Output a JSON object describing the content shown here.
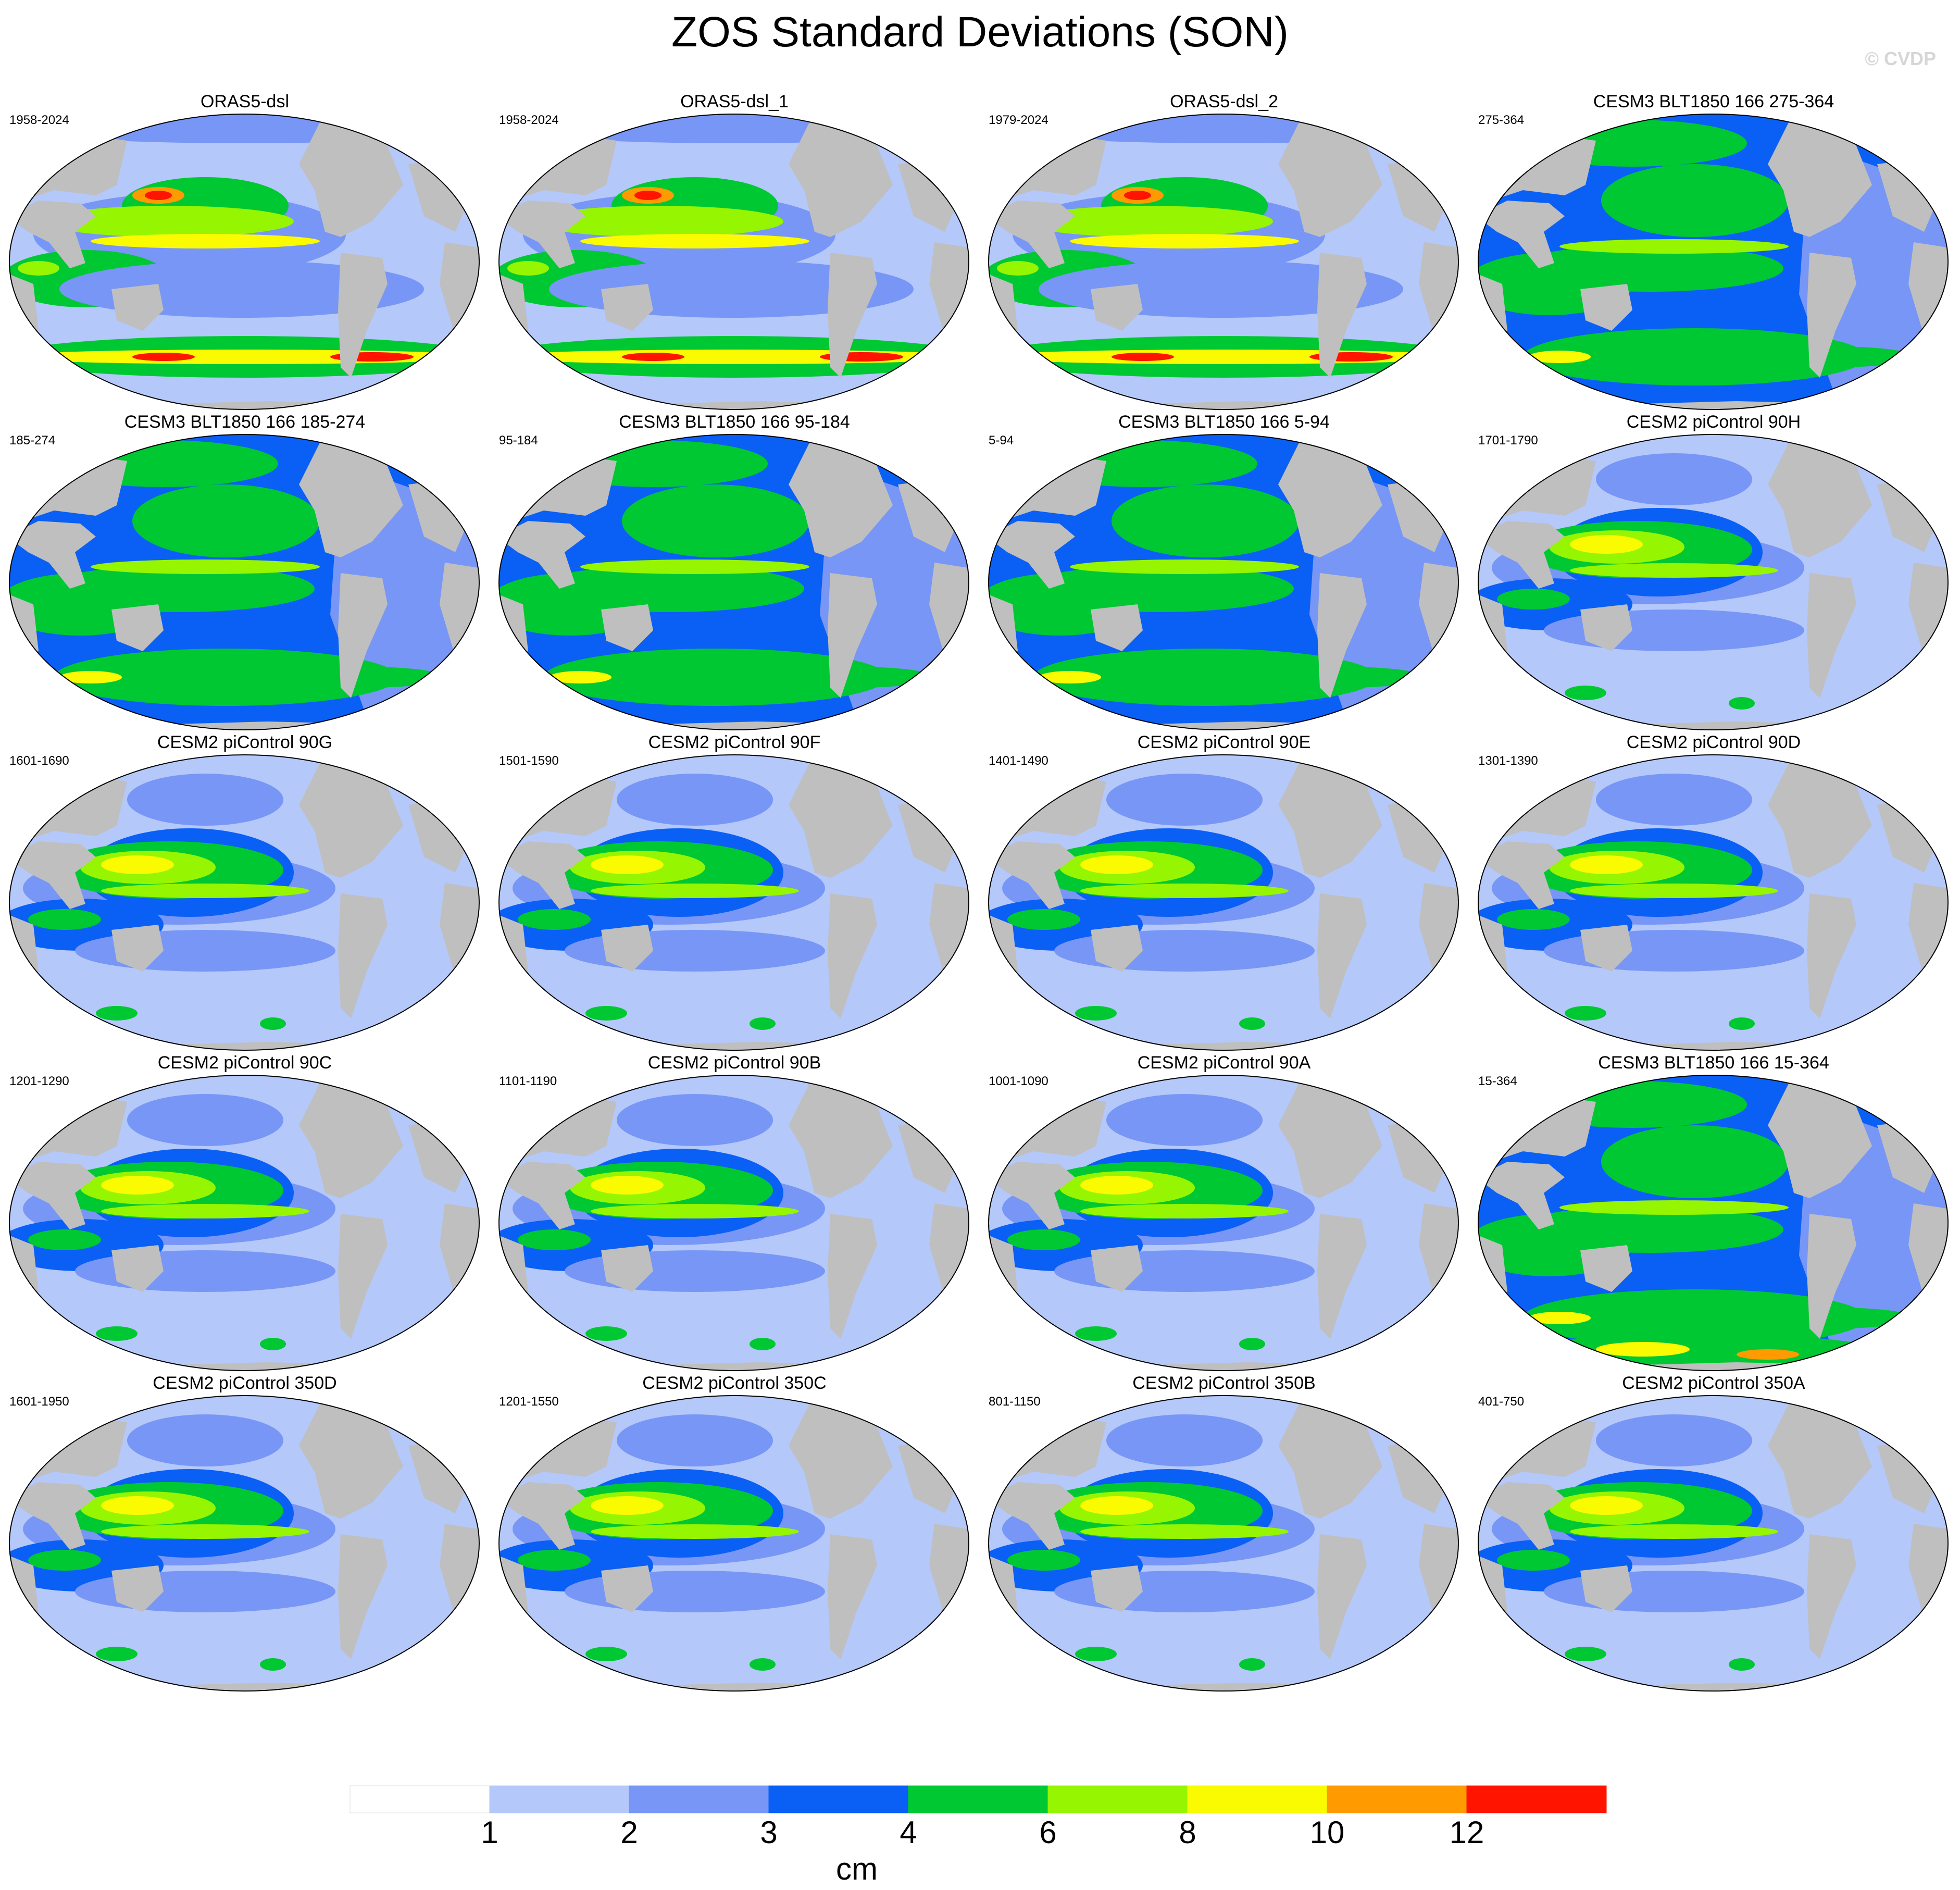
{
  "title": "ZOS Standard Deviations (SON)",
  "watermark": "© CVDP",
  "panels": [
    {
      "label": "ORAS5-dsl",
      "years": "1958-2024",
      "style": "obs"
    },
    {
      "label": "ORAS5-dsl_1",
      "years": "1958-2024",
      "style": "obs"
    },
    {
      "label": "ORAS5-dsl_2",
      "years": "1979-2024",
      "style": "obs"
    },
    {
      "label": "CESM3 BLT1850 166 275-364",
      "years": "275-364",
      "style": "cesm3"
    },
    {
      "label": "CESM3 BLT1850 166 185-274",
      "years": "185-274",
      "style": "cesm3"
    },
    {
      "label": "CESM3 BLT1850 166 95-184",
      "years": "95-184",
      "style": "cesm3"
    },
    {
      "label": "CESM3 BLT1850 166 5-94",
      "years": "5-94",
      "style": "cesm3"
    },
    {
      "label": "CESM2 piControl 90H",
      "years": "1701-1790",
      "style": "cesm2"
    },
    {
      "label": "CESM2 piControl 90G",
      "years": "1601-1690",
      "style": "cesm2"
    },
    {
      "label": "CESM2 piControl 90F",
      "years": "1501-1590",
      "style": "cesm2"
    },
    {
      "label": "CESM2 piControl 90E",
      "years": "1401-1490",
      "style": "cesm2"
    },
    {
      "label": "CESM2 piControl 90D",
      "years": "1301-1390",
      "style": "cesm2"
    },
    {
      "label": "CESM2 piControl 90C",
      "years": "1201-1290",
      "style": "cesm2"
    },
    {
      "label": "CESM2 piControl 90B",
      "years": "1101-1190",
      "style": "cesm2"
    },
    {
      "label": "CESM2 piControl 90A",
      "years": "1001-1090",
      "style": "cesm2"
    },
    {
      "label": "CESM3 BLT1850 166 15-364",
      "years": "15-364",
      "style": "cesm3"
    },
    {
      "label": "CESM2 piControl 350D",
      "years": "1601-1950",
      "style": "cesm2"
    },
    {
      "label": "CESM2 piControl 350C",
      "years": "1201-1550",
      "style": "cesm2"
    },
    {
      "label": "CESM2 piControl 350B",
      "years": "801-1150",
      "style": "cesm2"
    },
    {
      "label": "CESM2 piControl 350A",
      "years": "401-750",
      "style": "cesm2"
    }
  ],
  "colorbar": {
    "unit": "cm",
    "tick_labels": [
      "1",
      "2",
      "3",
      "4",
      "6",
      "8",
      "10",
      "12"
    ],
    "colors": [
      "#ffffff",
      "#b4c8fa",
      "#7896f5",
      "#0a5ff5",
      "#00c832",
      "#96f500",
      "#fafa00",
      "#ff9b00",
      "#ff1400"
    ]
  },
  "map_colors": {
    "land": "#bfbfbf",
    "c1": "#b4c8fa",
    "c2": "#7896f5",
    "c3": "#0a5ff5",
    "c4": "#00c832",
    "c5": "#96f500",
    "c6": "#fafa00",
    "c7": "#ff9b00",
    "c8": "#ff1400"
  }
}
